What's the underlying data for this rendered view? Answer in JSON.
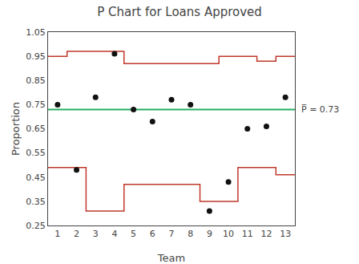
{
  "chart_data": {
    "type": "control",
    "title": "P Chart for Loans Approved",
    "xlabel": "Team",
    "ylabel": "Proportion",
    "x": [
      1,
      2,
      3,
      4,
      5,
      6,
      7,
      8,
      9,
      10,
      11,
      12,
      13
    ],
    "values": [
      0.75,
      0.48,
      0.78,
      0.96,
      0.73,
      0.68,
      0.77,
      0.75,
      0.31,
      0.43,
      0.65,
      0.66,
      0.78
    ],
    "color": "#111111",
    "marker": "circle",
    "ucl": {
      "x": [
        0.5,
        1.5,
        1.5,
        3.5,
        3.5,
        4.5,
        4.5,
        8.5,
        8.5,
        9.5,
        9.5,
        11.5,
        11.5,
        12.5,
        12.5,
        13.5
      ],
      "y": [
        0.95,
        0.95,
        0.97,
        0.97,
        0.97,
        0.97,
        0.92,
        0.92,
        0.92,
        0.92,
        0.95,
        0.95,
        0.93,
        0.93,
        0.95,
        0.95
      ],
      "color": "#c0392b"
    },
    "lcl": {
      "x": [
        0.5,
        1.5,
        1.5,
        2.5,
        2.5,
        3.5,
        3.5,
        4.5,
        4.5,
        8.5,
        8.5,
        10.5,
        10.5,
        12.5,
        12.5,
        13.5
      ],
      "y": [
        0.49,
        0.49,
        0.49,
        0.49,
        0.31,
        0.31,
        0.31,
        0.31,
        0.42,
        0.42,
        0.35,
        0.35,
        0.49,
        0.49,
        0.46,
        0.46
      ],
      "color": "#c0392b"
    },
    "center": {
      "value": 0.73,
      "label": "P̅ = 0.73",
      "color": "#27ae60"
    },
    "xlim": [
      0.5,
      13.5
    ],
    "xticks": [
      1,
      2,
      3,
      4,
      5,
      6,
      7,
      8,
      9,
      10,
      11,
      12,
      13
    ],
    "ylim": [
      0.25,
      1.05
    ],
    "yticks": [
      0.25,
      0.35,
      0.45,
      0.55,
      0.65,
      0.75,
      0.85,
      0.95,
      1.05
    ],
    "grid": false
  }
}
